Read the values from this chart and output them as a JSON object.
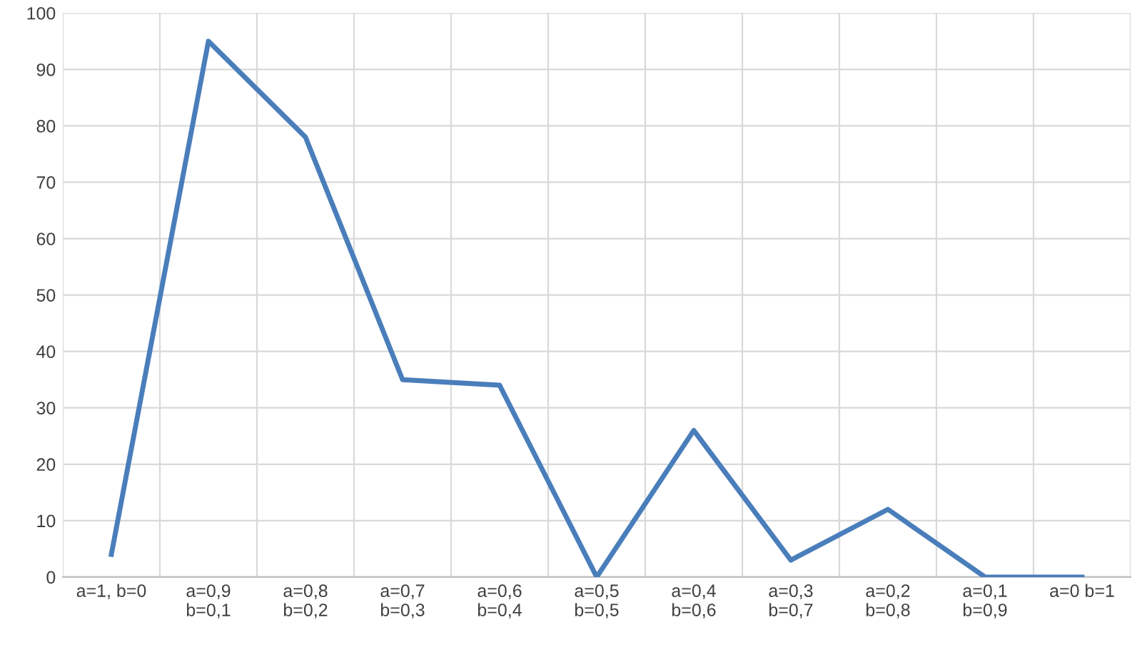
{
  "chart_data": {
    "type": "line",
    "categories": [
      "a=1, b=0",
      "a=0,9\nb=0,1",
      "a=0,8\nb=0,2",
      "a=0,7\nb=0,3",
      "a=0,6\nb=0,4",
      "a=0,5\nb=0,5",
      "a=0,4\nb=0,6",
      "a=0,3\nb=0,7",
      "a=0,2\nb=0,8",
      "a=0,1\nb=0,9",
      "a=0 b=1"
    ],
    "series": [
      {
        "color": "#4a7ebb",
        "values": [
          4,
          95,
          78,
          35,
          34,
          0,
          26,
          3,
          12,
          0,
          0
        ]
      }
    ],
    "ylim": [
      0,
      100
    ],
    "yticks": [
      0,
      10,
      20,
      30,
      40,
      50,
      60,
      70,
      80,
      90,
      100
    ],
    "grid": true,
    "line_style": "solid",
    "marker": "none"
  }
}
